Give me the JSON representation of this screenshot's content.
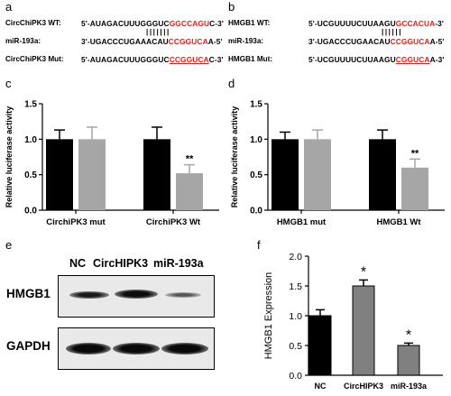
{
  "panels": {
    "a": "a",
    "b": "b",
    "c": "c",
    "d": "d",
    "e": "e",
    "f": "f"
  },
  "seq_a": {
    "wt_label": "CircChiPK3 WT:",
    "wt_pre": "5'-AUAGACUUUGGGUC",
    "wt_red": "GGCCAGU",
    "wt_post": "C-3'",
    "pairs": "|||||||",
    "mir_label": "miR-193a:",
    "mir_pre": "3'-UGACCCUGAAACAU",
    "mir_red": "CCGGUCA",
    "mir_post": "A-5'",
    "mut_label": "CircChiPK3 Mut:",
    "mut_pre": "5'-AUAGACUUUGGGUC",
    "mut_red": "CCGGUCA",
    "mut_post": "C-3'"
  },
  "seq_b": {
    "wt_label": "HMGB1 WT:",
    "wt_pre": "5'-UCGUUUUCUUAAGU",
    "wt_red": "GCCACUA",
    "wt_post": "-3'",
    "pairs": "||||||",
    "mir_label": "miR-193a:",
    "mir_pre": "3'-UGACCCUGAACAU",
    "mir_red": "CCGGUCA",
    "mir_post": "A-5'",
    "mut_label": "HMGB1 Mut:",
    "mut_pre": "5'-UCGUUUUCUUAAGU",
    "mut_red": "CGGUCA",
    "mut_post": "A-3'"
  },
  "blot": {
    "lanes": [
      "NC",
      "CircHIPK3",
      "miR-193a"
    ],
    "rows": [
      "HMGB1",
      "GAPDH"
    ],
    "hmgb1_intensity": [
      0.75,
      0.9,
      0.35
    ],
    "gapdh_intensity": [
      0.95,
      0.95,
      0.95
    ]
  },
  "colors": {
    "black_bar": "#000000",
    "gray_bar": "#a6a6a6",
    "dark_gray_bar": "#808080",
    "red": "#e0201a"
  },
  "chart_data": [
    {
      "type": "bar",
      "panel": "c",
      "categories": [
        "CirchiPK3 mut",
        "CirchiPK3 Wt"
      ],
      "series": [
        {
          "values": [
            1.0,
            1.0
          ],
          "errors": [
            0.13,
            0.17
          ],
          "color": "#000000"
        },
        {
          "values": [
            1.0,
            0.52
          ],
          "errors": [
            0.17,
            0.12
          ],
          "color": "#a6a6a6"
        }
      ],
      "ylabel": "Relative luciferase activity",
      "ylim": [
        0,
        1.5
      ],
      "yticks": [
        "0.0",
        "0.5",
        "1.0",
        "1.5"
      ],
      "annotations": [
        {
          "category": 1,
          "series": 1,
          "text": "**"
        }
      ]
    },
    {
      "type": "bar",
      "panel": "d",
      "categories": [
        "HMGB1 mut",
        "HMGB1 Wt"
      ],
      "series": [
        {
          "values": [
            1.0,
            1.0
          ],
          "errors": [
            0.1,
            0.13
          ],
          "color": "#000000"
        },
        {
          "values": [
            1.0,
            0.6
          ],
          "errors": [
            0.13,
            0.12
          ],
          "color": "#a6a6a6"
        }
      ],
      "ylabel": "Relative luciferase activity",
      "ylim": [
        0,
        1.5
      ],
      "yticks": [
        "0.0",
        "0.5",
        "1.0",
        "1.5"
      ],
      "annotations": [
        {
          "category": 1,
          "series": 1,
          "text": "**"
        }
      ]
    },
    {
      "type": "bar",
      "panel": "f",
      "categories": [
        "NC",
        "CircHIPK3",
        "miR-193a"
      ],
      "values": [
        1.0,
        1.5,
        0.5
      ],
      "errors": [
        0.1,
        0.1,
        0.04
      ],
      "colors": [
        "#000000",
        "#808080",
        "#808080"
      ],
      "ylabel": "HMGB1 Expression",
      "ylim": [
        0,
        2.0
      ],
      "yticks": [
        "0.0",
        "0.5",
        "1.0",
        "1.5",
        "2.0"
      ],
      "annotations": [
        {
          "index": 1,
          "text": "*"
        },
        {
          "index": 2,
          "text": "*"
        }
      ]
    }
  ]
}
